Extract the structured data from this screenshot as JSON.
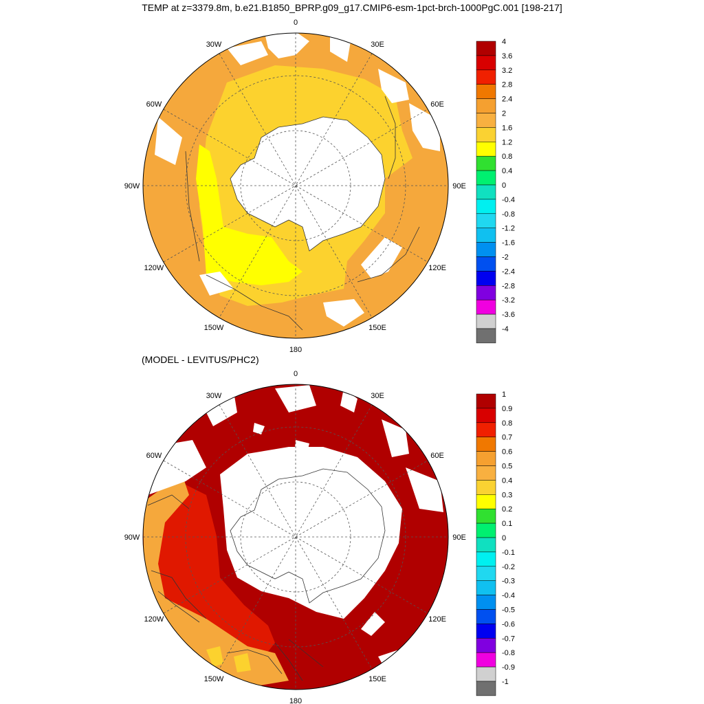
{
  "title": "TEMP at z=3379.8m, b.e21.B1850_BPRP.g09_g17.CMIP6-esm-1pct-brch-1000PgC.001 [198-217]",
  "subtitle": "(MODEL - LEVITUS/PHC2)",
  "maps": [
    {
      "name": "temp",
      "lon_labels": [
        "0",
        "30E",
        "60E",
        "90E",
        "120E",
        "150E",
        "180",
        "150W",
        "120W",
        "90W",
        "60W",
        "30W"
      ],
      "colorbar": {
        "labels": [
          "4",
          "3.6",
          "3.2",
          "2.8",
          "2.4",
          "2",
          "1.6",
          "1.2",
          "0.8",
          "0.4",
          "0",
          "-0.4",
          "-0.8",
          "-1.2",
          "-1.6",
          "-2",
          "-2.4",
          "-2.8",
          "-3.2",
          "-3.6",
          "-4"
        ],
        "colors": [
          "#b00000",
          "#d80000",
          "#f02000",
          "#f07800",
          "#f5a030",
          "#f8b040",
          "#fad232",
          "#ffff00",
          "#30e030",
          "#00f070",
          "#10e0c0",
          "#00f0f0",
          "#20d8f0",
          "#10c0f0",
          "#0090f0",
          "#0050f0",
          "#0000f0",
          "#8000e0",
          "#f000e0",
          "#d0d0d0",
          "#707070"
        ]
      },
      "fills": {
        "warm": "#f5a83c",
        "mid": "#fcd22e",
        "cold": "#ffff00"
      }
    },
    {
      "name": "diff",
      "lon_labels": [
        "0",
        "30E",
        "60E",
        "90E",
        "120E",
        "150E",
        "180",
        "150W",
        "120W",
        "90W",
        "60W",
        "30W"
      ],
      "colorbar": {
        "labels": [
          "1",
          "0.9",
          "0.8",
          "0.7",
          "0.6",
          "0.5",
          "0.4",
          "0.3",
          "0.2",
          "0.1",
          "0",
          "-0.1",
          "-0.2",
          "-0.3",
          "-0.4",
          "-0.5",
          "-0.6",
          "-0.7",
          "-0.8",
          "-0.9",
          "-1"
        ],
        "colors": [
          "#b00000",
          "#d80000",
          "#f02000",
          "#f07800",
          "#f5a030",
          "#f8b040",
          "#fad232",
          "#ffff00",
          "#30e030",
          "#00f070",
          "#10e0c0",
          "#00f0f0",
          "#20d8f0",
          "#10c0f0",
          "#0090f0",
          "#0050f0",
          "#0000f0",
          "#8000e0",
          "#f000e0",
          "#d0d0d0",
          "#707070"
        ]
      },
      "fills": {
        "warm": "#b00000",
        "mid": "#e01800",
        "cold": "#f5a83c"
      }
    }
  ]
}
